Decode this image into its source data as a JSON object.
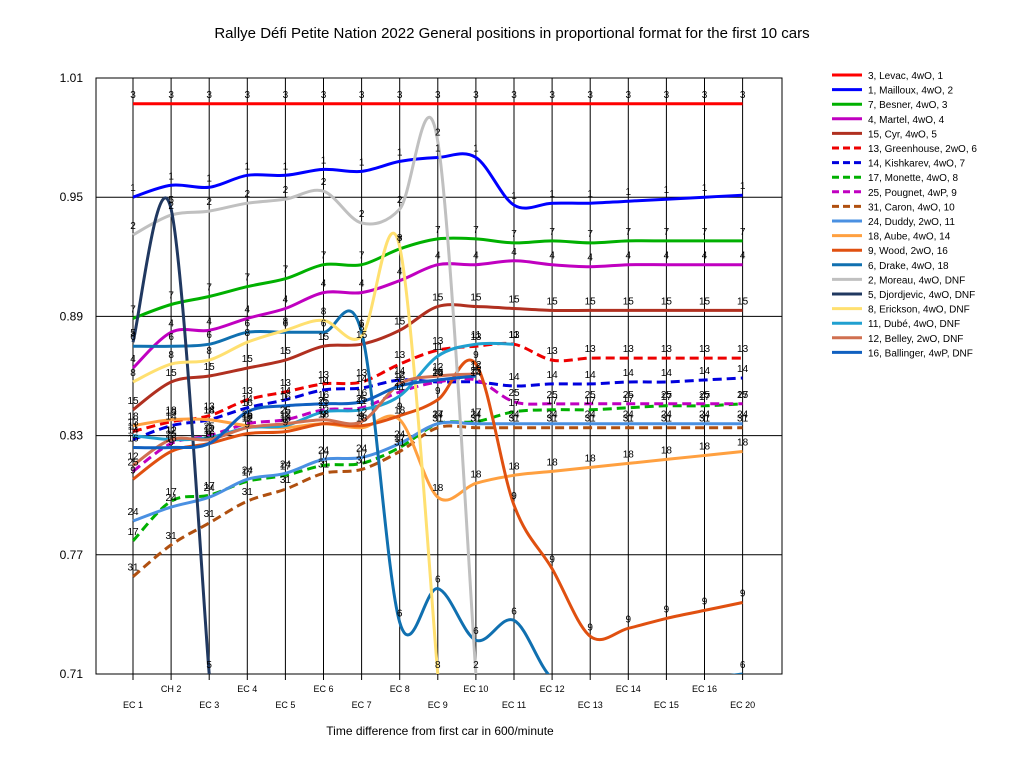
{
  "chart_data": {
    "type": "line",
    "title": "Rallye Défi Petite Nation 2022  General positions in proportional format for the first 10 cars",
    "xlabel": "Time difference from first car in 600/minute",
    "ylabel": "",
    "ylim": [
      0.71,
      1.01
    ],
    "y_ticks": [
      "1.01",
      "0.95",
      "0.89",
      "0.83",
      "0.77",
      "0.71"
    ],
    "categories": [
      "EC 1",
      "CH 2",
      "EC 3",
      "EC 4",
      "EC 5",
      "EC 6",
      "EC 7",
      "EC 8",
      "EC 9",
      "EC 10",
      "EC 11",
      "EC 12",
      "EC 13",
      "EC 14",
      "EC 15",
      "EC 16",
      "EC 20"
    ],
    "grid": true,
    "legend_position": "right",
    "series": [
      {
        "name": "3, Levac, 4wO, 1",
        "color": "#ff0000",
        "dash": false,
        "values": [
          0.997,
          0.997,
          0.997,
          0.997,
          0.997,
          0.997,
          0.997,
          0.997,
          0.997,
          0.997,
          0.997,
          0.997,
          0.997,
          0.997,
          0.997,
          0.997,
          0.997
        ]
      },
      {
        "name": "1, Mailloux, 4wO, 2",
        "color": "#0000ff",
        "dash": false,
        "values": [
          0.95,
          0.956,
          0.955,
          0.961,
          0.961,
          0.964,
          0.963,
          0.968,
          0.97,
          0.97,
          0.946,
          0.947,
          0.947,
          0.948,
          0.949,
          0.95,
          0.951
        ]
      },
      {
        "name": "7, Besner, 4wO, 3",
        "color": "#00b000",
        "dash": false,
        "values": [
          0.889,
          0.896,
          0.9,
          0.905,
          0.909,
          0.916,
          0.916,
          0.924,
          0.929,
          0.929,
          0.927,
          0.928,
          0.927,
          0.928,
          0.928,
          0.928,
          0.928
        ]
      },
      {
        "name": "4, Martel, 4wO, 4",
        "color": "#c000c0",
        "dash": false,
        "values": [
          0.864,
          0.882,
          0.883,
          0.889,
          0.894,
          0.902,
          0.902,
          0.908,
          0.916,
          0.916,
          0.918,
          0.916,
          0.915,
          0.916,
          0.916,
          0.916,
          0.916
        ]
      },
      {
        "name": "15, Cyr, 4wO, 5",
        "color": "#b03020",
        "dash": false,
        "values": [
          0.843,
          0.857,
          0.86,
          0.864,
          0.868,
          0.875,
          0.876,
          0.883,
          0.895,
          0.895,
          0.894,
          0.893,
          0.893,
          0.893,
          0.893,
          0.893,
          0.893
        ]
      },
      {
        "name": "13, Greenhouse, 2wO, 6",
        "color": "#ee0000",
        "dash": true,
        "values": [
          0.832,
          0.837,
          0.84,
          0.848,
          0.852,
          0.856,
          0.857,
          0.866,
          0.873,
          0.875,
          0.876,
          0.868,
          0.869,
          0.869,
          0.869,
          0.869,
          0.869
        ]
      },
      {
        "name": "14, Kishkarev, 4wO, 7",
        "color": "#0000dd",
        "dash": true,
        "values": [
          0.828,
          0.835,
          0.838,
          0.844,
          0.848,
          0.853,
          0.854,
          0.858,
          0.857,
          0.857,
          0.855,
          0.856,
          0.856,
          0.857,
          0.857,
          0.858,
          0.859
        ]
      },
      {
        "name": "17, Monette, 4wO, 8",
        "color": "#00b000",
        "dash": true,
        "values": [
          0.777,
          0.797,
          0.8,
          0.807,
          0.81,
          0.815,
          0.816,
          0.824,
          0.836,
          0.837,
          0.842,
          0.843,
          0.843,
          0.844,
          0.845,
          0.845,
          0.846
        ]
      },
      {
        "name": "25, Pougnet, 4wP, 9",
        "color": "#c000c0",
        "dash": true,
        "values": [
          0.812,
          0.826,
          0.83,
          0.836,
          0.838,
          0.843,
          0.844,
          0.852,
          0.857,
          0.858,
          0.847,
          0.846,
          0.846,
          0.846,
          0.846,
          0.846,
          0.846
        ]
      },
      {
        "name": "31, Caron, 4wO, 10",
        "color": "#b05010",
        "dash": true,
        "values": [
          0.759,
          0.775,
          0.786,
          0.797,
          0.803,
          0.811,
          0.813,
          0.822,
          0.834,
          0.834,
          0.834,
          0.834,
          0.834,
          0.834,
          0.834,
          0.834,
          0.834
        ]
      },
      {
        "name": "24, Duddy, 2wO, 11",
        "color": "#4a90e2",
        "dash": false,
        "values": [
          0.787,
          0.794,
          0.799,
          0.808,
          0.811,
          0.818,
          0.819,
          0.826,
          0.836,
          0.836,
          0.836,
          0.836,
          0.836,
          0.836,
          0.836,
          0.836,
          0.836
        ]
      },
      {
        "name": "18, Aube, 4wO, 14",
        "color": "#ffa040",
        "dash": false,
        "values": [
          0.835,
          0.838,
          0.838,
          0.835,
          0.834,
          0.836,
          0.834,
          0.838,
          0.799,
          0.806,
          0.81,
          0.812,
          0.814,
          0.816,
          0.818,
          0.82,
          0.822
        ]
      },
      {
        "name": "9, Wood, 2wO, 16",
        "color": "#e05010",
        "dash": false,
        "values": [
          0.808,
          0.822,
          0.826,
          0.831,
          0.832,
          0.836,
          0.835,
          0.84,
          0.848,
          0.866,
          0.795,
          0.763,
          0.729,
          0.733,
          0.738,
          0.742,
          0.746
        ]
      },
      {
        "name": "6, Drake, 4wO, 18",
        "color": "#1070b0",
        "dash": false,
        "values": [
          0.875,
          0.875,
          0.876,
          0.882,
          0.882,
          0.882,
          0.882,
          0.736,
          0.753,
          0.727,
          0.737,
          0.708,
          0.708,
          0.708,
          0.708,
          0.708,
          0.71
        ]
      },
      {
        "name": "2, Moreau, 4wO, DNF",
        "color": "#c0c0c0",
        "dash": false,
        "values": [
          0.931,
          0.941,
          0.943,
          0.947,
          0.949,
          0.953,
          0.937,
          0.944,
          0.978,
          0.71,
          null,
          null,
          null,
          null,
          null,
          null,
          null
        ]
      },
      {
        "name": "5, Djordjevic, 4wO, DNF",
        "color": "#203860",
        "dash": false,
        "values": [
          0.877,
          0.944,
          0.71,
          null,
          null,
          null,
          null,
          null,
          null,
          null,
          null,
          null,
          null,
          null,
          null,
          null,
          null
        ]
      },
      {
        "name": "8, Erickson, 4wO, DNF",
        "color": "#ffe070",
        "dash": false,
        "values": [
          0.857,
          0.866,
          0.868,
          0.877,
          0.883,
          0.888,
          0.88,
          0.925,
          0.71,
          null,
          null,
          null,
          null,
          null,
          null,
          null,
          null
        ]
      },
      {
        "name": "11, Dubé, 4wO, DNF",
        "color": "#20a0d0",
        "dash": false,
        "values": [
          0.83,
          0.828,
          0.829,
          0.834,
          0.835,
          0.842,
          0.843,
          0.85,
          0.87,
          0.876,
          0.876,
          null,
          null,
          null,
          null,
          null,
          null
        ]
      },
      {
        "name": "12, Belley, 2wO, DNF",
        "color": "#d07050",
        "dash": false,
        "values": [
          0.815,
          0.828,
          0.828,
          0.834,
          0.836,
          0.838,
          0.837,
          0.856,
          0.86,
          0.861,
          null,
          null,
          null,
          null,
          null,
          null,
          null
        ]
      },
      {
        "name": "16, Ballinger, 4wP, DNF",
        "color": "#1060c0",
        "dash": false,
        "values": [
          0.824,
          0.824,
          0.826,
          0.842,
          0.845,
          0.846,
          0.847,
          0.855,
          0.858,
          0.86,
          null,
          null,
          null,
          null,
          null,
          null,
          null
        ]
      }
    ],
    "point_labels": [
      {
        "text": "3",
        "series": 0
      },
      {
        "text": "1",
        "series": 1
      },
      {
        "text": "7",
        "series": 2
      },
      {
        "text": "4",
        "series": 3
      },
      {
        "text": "15",
        "series": 4
      },
      {
        "text": "13",
        "series": 5
      },
      {
        "text": "14",
        "series": 6
      },
      {
        "text": "17",
        "series": 7
      },
      {
        "text": "25",
        "series": 8
      },
      {
        "text": "31",
        "series": 9
      },
      {
        "text": "24",
        "series": 10
      },
      {
        "text": "18",
        "series": 11
      },
      {
        "text": "9",
        "series": 12
      },
      {
        "text": "6",
        "series": 13
      },
      {
        "text": "2",
        "series": 14
      },
      {
        "text": "5",
        "series": 15
      },
      {
        "text": "8",
        "series": 16
      },
      {
        "text": "11",
        "series": 17
      },
      {
        "text": "12",
        "series": 18
      },
      {
        "text": "16",
        "series": 19
      }
    ]
  }
}
